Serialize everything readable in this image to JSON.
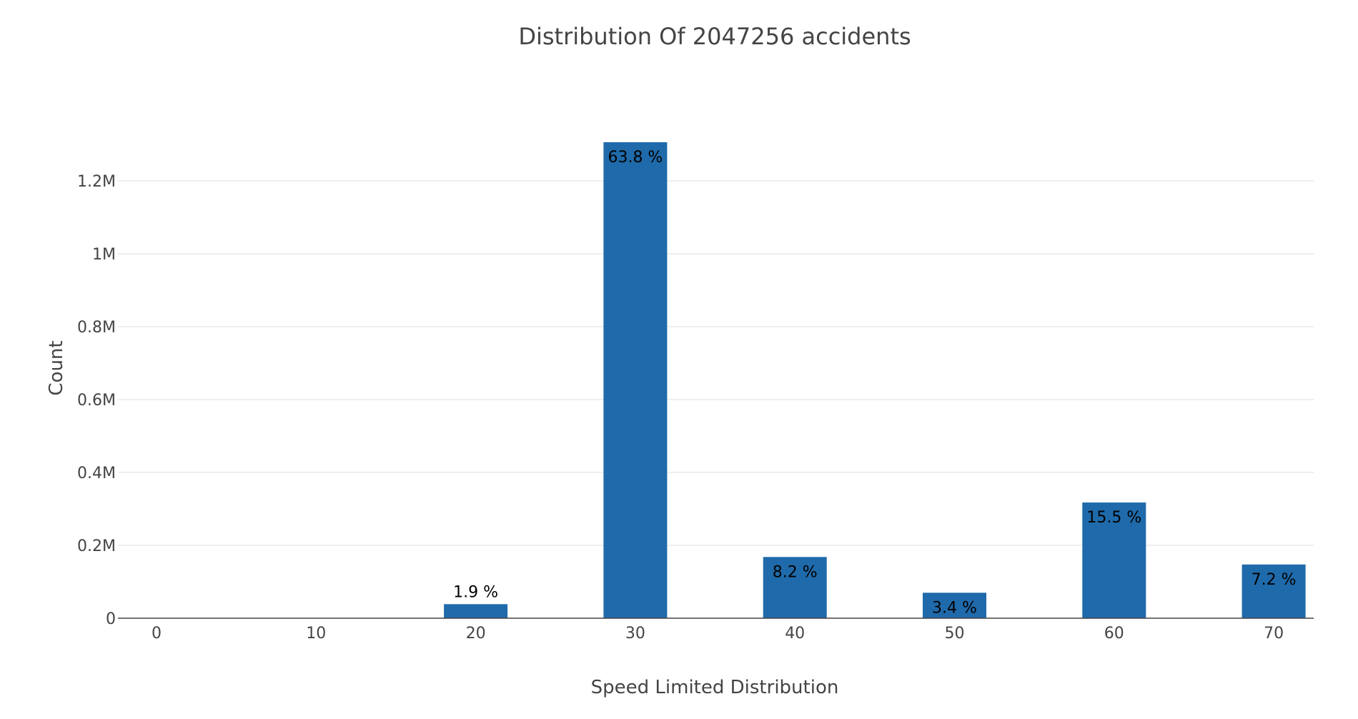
{
  "chart_data": {
    "type": "bar",
    "title": "Distribution Of 2047256 accidents",
    "xlabel": "Speed Limited Distribution",
    "ylabel": "Count",
    "x": [
      0,
      10,
      20,
      30,
      40,
      50,
      60,
      70
    ],
    "x_tick_labels": [
      "0",
      "10",
      "20",
      "30",
      "40",
      "50",
      "60",
      "70"
    ],
    "values": [
      3,
      0,
      38600,
      1306000,
      168000,
      69900,
      317500,
      147400
    ],
    "data_labels": [
      "",
      "",
      "1.9 %",
      "63.8 %",
      "8.2 %",
      "3.4 %",
      "15.5 %",
      "7.2 %"
    ],
    "ylim": [
      0,
      1306000
    ],
    "y_ticks": [
      0,
      200000,
      400000,
      600000,
      800000,
      1000000,
      1200000
    ],
    "y_tick_labels": [
      "0",
      "0.2M",
      "0.4M",
      "0.6M",
      "0.8M",
      "1M",
      "1.2M"
    ],
    "grid": true,
    "legend": "none",
    "colors": {
      "bar": "#1f6aaa",
      "grid": "#e5e5e5",
      "axis": "#444444",
      "text": "#444444",
      "data_label": "#000000"
    }
  }
}
